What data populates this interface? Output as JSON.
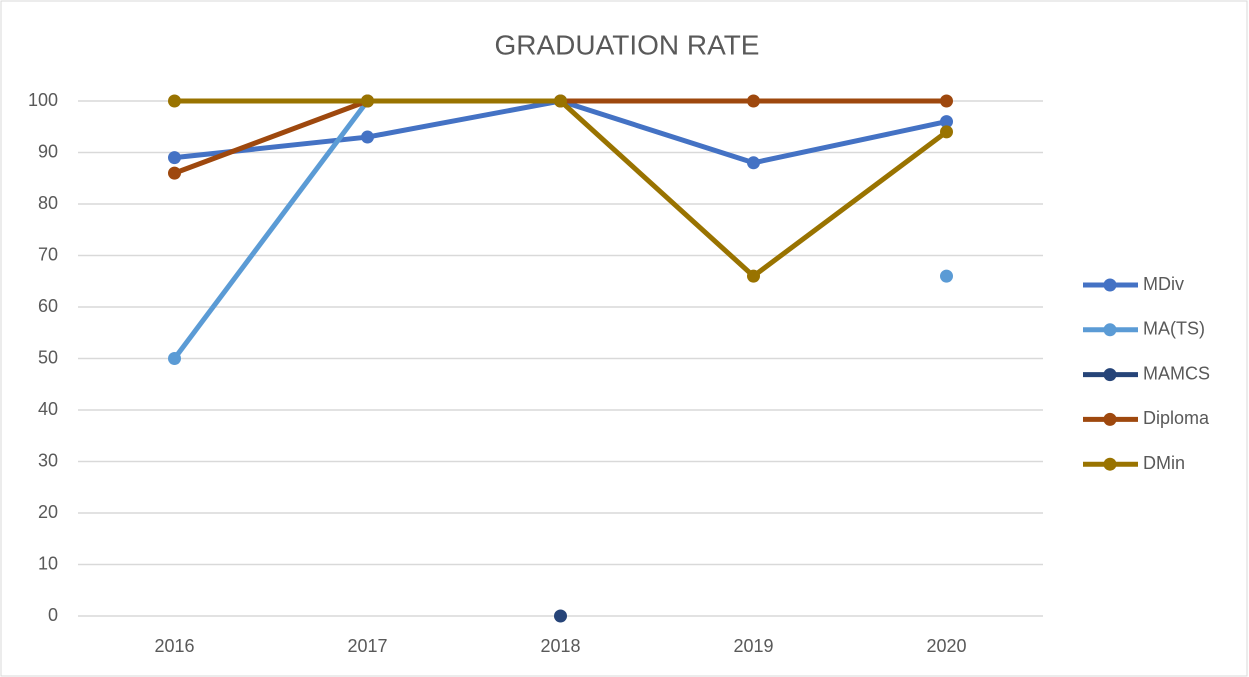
{
  "chart_data": {
    "type": "line",
    "title": "GRADUATION RATE",
    "categories": [
      "2016",
      "2017",
      "2018",
      "2019",
      "2020"
    ],
    "series": [
      {
        "name": "MDiv",
        "color": "#4472c4",
        "values": [
          89,
          93,
          100,
          88,
          96
        ]
      },
      {
        "name": "MA(TS)",
        "color": "#5b9bd5",
        "values": [
          50,
          100,
          null,
          null,
          66
        ]
      },
      {
        "name": "MAMCS",
        "color": "#264478",
        "values": [
          null,
          null,
          0,
          null,
          null
        ]
      },
      {
        "name": "Diploma",
        "color": "#9e480e",
        "values": [
          86,
          100,
          100,
          100,
          100
        ]
      },
      {
        "name": "DMin",
        "color": "#997300",
        "values": [
          100,
          100,
          100,
          66,
          94
        ]
      }
    ],
    "ylim": [
      0,
      100
    ],
    "yticks": [
      0,
      10,
      20,
      30,
      40,
      50,
      60,
      70,
      80,
      90,
      100
    ],
    "grid": true,
    "legend": "right"
  }
}
